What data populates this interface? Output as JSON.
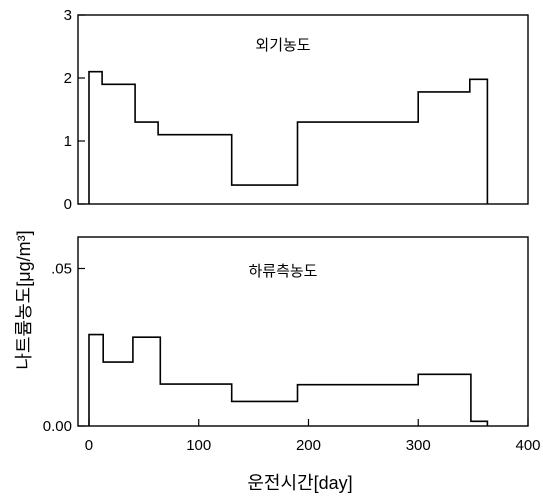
{
  "chart_data": [
    {
      "type": "line",
      "step": "post",
      "title": "외기농도",
      "xlim": [
        -10,
        400
      ],
      "ylim": [
        0,
        3
      ],
      "yticks": [
        {
          "value": 0,
          "label": "0"
        },
        {
          "value": 1,
          "label": "1"
        },
        {
          "value": 2,
          "label": "2"
        },
        {
          "value": 3,
          "label": "3"
        }
      ],
      "series": [
        {
          "x": [
            0,
            0,
            12,
            42,
            63,
            130,
            190,
            300,
            347,
            363,
            363
          ],
          "y": [
            0,
            2.1,
            1.9,
            1.3,
            1.1,
            0.3,
            1.3,
            1.78,
            1.98,
            0,
            0
          ]
        }
      ]
    },
    {
      "type": "line",
      "step": "post",
      "title": "하류측농도",
      "xlim": [
        -10,
        400
      ],
      "ylim": [
        0,
        0.06
      ],
      "xlabel": "운전시간[day]",
      "ylabel": "나트륨농도[μg/m³]",
      "yticks": [
        {
          "value": 0,
          "label": "0.00"
        },
        {
          "value": 0.05,
          "label": ".05"
        }
      ],
      "xticks": [
        {
          "value": 0,
          "label": "0"
        },
        {
          "value": 100,
          "label": "100"
        },
        {
          "value": 200,
          "label": "200"
        },
        {
          "value": 300,
          "label": "300"
        },
        {
          "value": 400,
          "label": "400"
        }
      ],
      "series": [
        {
          "x": [
            0,
            0,
            13,
            40,
            65,
            130,
            190,
            300,
            348,
            363,
            363
          ],
          "y": [
            0,
            0.029,
            0.0203,
            0.0282,
            0.0133,
            0.0078,
            0.0131,
            0.0164,
            0.0015,
            0,
            0
          ]
        }
      ]
    }
  ]
}
